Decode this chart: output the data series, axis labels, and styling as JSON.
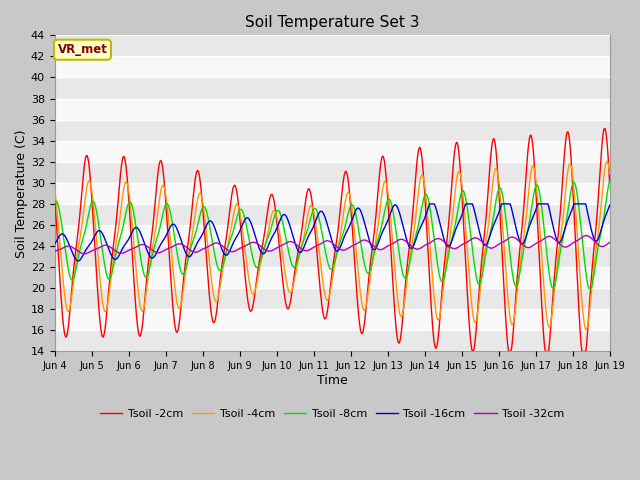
{
  "title": "Soil Temperature Set 3",
  "xlabel": "Time",
  "ylabel": "Soil Temperature (C)",
  "ylim": [
    14,
    44
  ],
  "yticks": [
    14,
    16,
    18,
    20,
    22,
    24,
    26,
    28,
    30,
    32,
    34,
    36,
    38,
    40,
    42,
    44
  ],
  "xtick_labels": [
    "Jun 4",
    "Jun 5",
    "Jun 6",
    "Jun 7",
    "Jun 8",
    "Jun 9",
    "Jun 10",
    "Jun 11",
    "Jun 12",
    "Jun 13",
    "Jun 14",
    "Jun 15",
    "Jun 16",
    "Jun 17",
    "Jun 18",
    "Jun 19"
  ],
  "line_colors": [
    "#ff0000",
    "#ff9900",
    "#00dd00",
    "#0000dd",
    "#bb00bb"
  ],
  "line_labels": [
    "Tsoil -2cm",
    "Tsoil -4cm",
    "Tsoil -8cm",
    "Tsoil -16cm",
    "Tsoil -32cm"
  ],
  "plot_bg": "#f8f8f8",
  "fig_bg": "#c8c8c8",
  "annotation_text": "VR_met",
  "annotation_bg": "#ffffcc",
  "annotation_border": "#bbbb00",
  "stripe_colors": [
    "#e8e8e8",
    "#f8f8f8"
  ]
}
